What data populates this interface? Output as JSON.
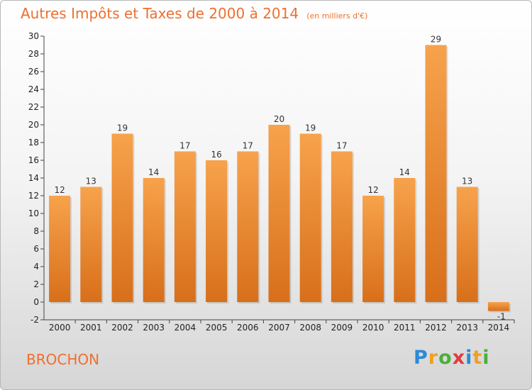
{
  "chart_data": {
    "type": "bar",
    "title": "Autres Impôts et Taxes de 2000 à 2014",
    "unit": "(en milliers d'€)",
    "categories": [
      "2000",
      "2001",
      "2002",
      "2003",
      "2004",
      "2005",
      "2006",
      "2007",
      "2008",
      "2009",
      "2010",
      "2011",
      "2012",
      "2013",
      "2014"
    ],
    "values": [
      12,
      13,
      19,
      14,
      17,
      16,
      17,
      20,
      19,
      17,
      12,
      14,
      29,
      13,
      -1
    ],
    "ylim": [
      -2,
      30
    ],
    "yticks": [
      -2,
      0,
      2,
      4,
      6,
      8,
      10,
      12,
      14,
      16,
      18,
      20,
      22,
      24,
      26,
      28,
      30
    ],
    "grid": false,
    "bar_color": "#f28a32"
  },
  "place": "BROCHON",
  "logo": {
    "text": "Proxiti",
    "letters": [
      {
        "ch": "P",
        "color": "#2c8ad8"
      },
      {
        "ch": "r",
        "color": "#f0a020"
      },
      {
        "ch": "o",
        "color": "#4caf3c"
      },
      {
        "ch": "x",
        "color": "#e23b3b"
      },
      {
        "ch": "i",
        "color": "#2c8ad8"
      },
      {
        "ch": "t",
        "color": "#f0a020"
      },
      {
        "ch": "i",
        "color": "#4caf3c"
      }
    ]
  }
}
